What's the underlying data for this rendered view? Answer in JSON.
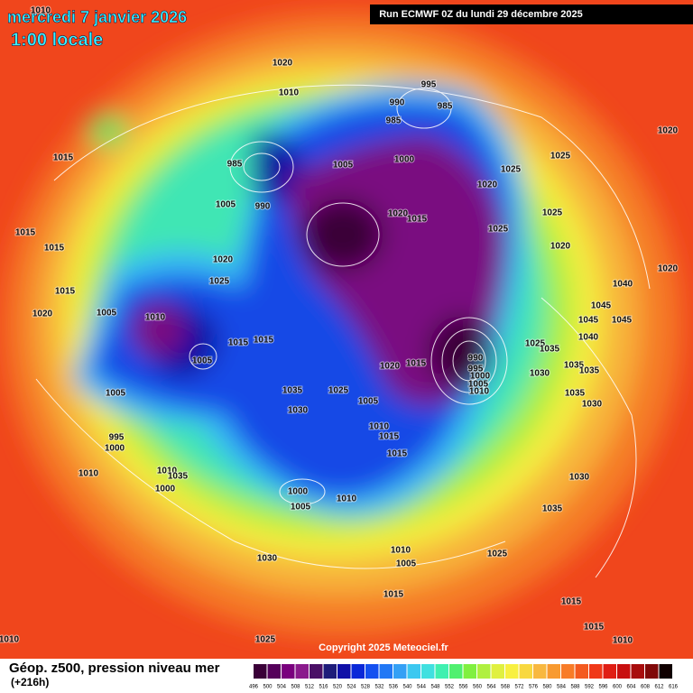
{
  "header": {
    "date": "mercredi 7 janvier 2026",
    "time": "1:00 locale",
    "run": "Run ECMWF 0Z du lundi 29 décembre 2025"
  },
  "footer": {
    "copyright": "Copyright 2025 Meteociel.fr",
    "title": "Géop. z500, pression niveau mer",
    "lead_time": "(+216h)"
  },
  "colorbar": {
    "ticks": [
      496,
      500,
      504,
      508,
      512,
      516,
      520,
      524,
      528,
      532,
      536,
      540,
      544,
      548,
      552,
      556,
      560,
      564,
      568,
      572,
      576,
      580,
      584,
      588,
      592,
      596,
      600,
      604,
      608,
      612,
      616
    ],
    "colors": [
      "#3a0038",
      "#55005a",
      "#7a007e",
      "#8a1a8c",
      "#4a1066",
      "#1e1c7a",
      "#1010a8",
      "#0a28d8",
      "#1450f0",
      "#2278f5",
      "#34a0f5",
      "#3cc8f0",
      "#40e0e0",
      "#40f0b0",
      "#50f070",
      "#80f040",
      "#b0f040",
      "#e0f040",
      "#f8f040",
      "#f8d840",
      "#f8b840",
      "#f89a30",
      "#f87c28",
      "#f45a20",
      "#f03818",
      "#e01e14",
      "#c81010",
      "#a80c0c",
      "#800808",
      "#100000"
    ]
  },
  "isobar_labels": [
    1010,
    1020,
    1010,
    995,
    990,
    985,
    985,
    1015,
    985,
    1005,
    1000,
    1025,
    1025,
    1020,
    1020,
    1005,
    990,
    1020,
    1015,
    1025,
    1025,
    1015,
    1015,
    1020,
    1025,
    1020,
    1020,
    1040,
    1015,
    1020,
    1005,
    1010,
    1015,
    1015,
    1020,
    1015,
    990,
    995,
    1000,
    1005,
    1010,
    1025,
    1035,
    1030,
    1045,
    1045,
    1045,
    1040,
    1035,
    1035,
    1035,
    1030,
    1005,
    1005,
    1035,
    1030,
    1025,
    1005,
    1010,
    1015,
    1015,
    995,
    1000,
    1010,
    1010,
    1035,
    1000,
    1000,
    1005,
    1010,
    1030,
    1035,
    1030,
    1010,
    1005,
    1025,
    1015,
    1015,
    1015,
    1010,
    1025,
    1010
  ]
}
